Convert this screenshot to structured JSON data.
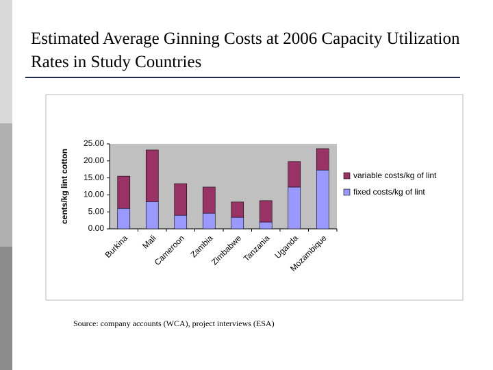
{
  "chart_data": {
    "type": "stacked_bar",
    "title": "Estimated Average Ginning Costs at 2006 Capacity Utilization Rates in Study Countries",
    "y_label": "cents/kg lint cotton",
    "categories": [
      "Burkina",
      "Mali",
      "Cameroon",
      "Zambia",
      "Zimbabwe",
      "Tanzania",
      "Uganda",
      "Mozambique"
    ],
    "series": [
      {
        "name": "fixed costs/kg of lint",
        "color": "#9999ff",
        "values": [
          6.0,
          8.0,
          4.0,
          4.6,
          3.4,
          2.0,
          12.3,
          17.3
        ]
      },
      {
        "name": "variable costs/kg of lint",
        "color": "#993366",
        "values": [
          9.5,
          15.2,
          9.3,
          7.7,
          4.5,
          6.3,
          7.5,
          6.3
        ]
      }
    ],
    "ylim": [
      0,
      25
    ],
    "yticks": [
      {
        "value": 0,
        "label": "0.00"
      },
      {
        "value": 5,
        "label": "5.00"
      },
      {
        "value": 10,
        "label": "10.00"
      },
      {
        "value": 15,
        "label": "15.00"
      },
      {
        "value": 20,
        "label": "20.00"
      },
      {
        "value": 25,
        "label": "25.00"
      }
    ],
    "grid": false,
    "legend": "right",
    "source": "Source: company accounts (WCA), project interviews (ESA)"
  }
}
